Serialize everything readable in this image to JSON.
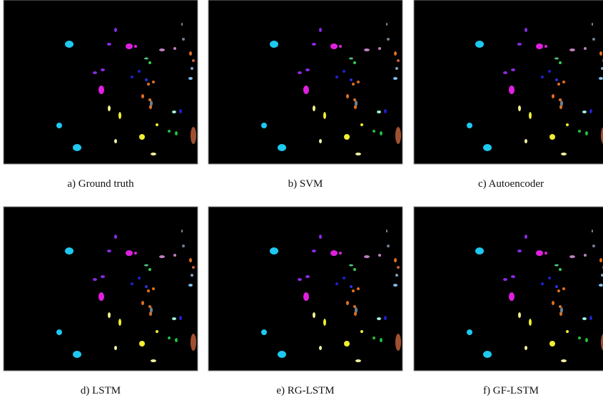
{
  "figure": {
    "panels": [
      {
        "caption": "a) Ground truth"
      },
      {
        "caption": "b) SVM"
      },
      {
        "caption": "c) Autoencoder"
      },
      {
        "caption": "d) LSTM"
      },
      {
        "caption": "e) RG-LSTM"
      },
      {
        "caption": "f) GF-LSTM"
      }
    ]
  }
}
